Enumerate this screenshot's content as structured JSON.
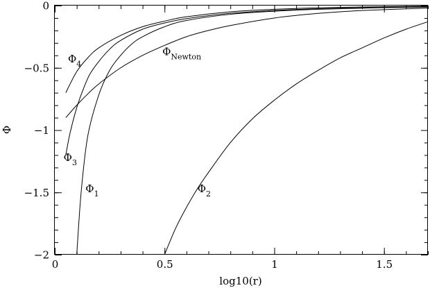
{
  "chart_data": {
    "type": "line",
    "title": "",
    "xlabel": "log10(r)",
    "ylabel": "Φ",
    "xlim": [
      0,
      1.7
    ],
    "ylim": [
      -2,
      0
    ],
    "grid": false,
    "x_major_ticks": [
      {
        "value": 0,
        "label": "0"
      },
      {
        "value": 0.5,
        "label": "0.5"
      },
      {
        "value": 1,
        "label": "1"
      },
      {
        "value": 1.5,
        "label": "1.5"
      }
    ],
    "y_major_ticks": [
      {
        "value": 0,
        "label": "0"
      },
      {
        "value": -0.5,
        "label": "−0.5"
      },
      {
        "value": -1,
        "label": "−1"
      },
      {
        "value": -1.5,
        "label": "−1.5"
      },
      {
        "value": -2,
        "label": "−2"
      }
    ],
    "x_minor_step": 0.1,
    "y_minor_step": 0.1,
    "series": [
      {
        "name": "Φ4",
        "label_base": "Φ",
        "label_sub": "4",
        "label_at": [
          0.06,
          -0.43
        ],
        "x": [
          0.05,
          0.1,
          0.15,
          0.2,
          0.3,
          0.4,
          0.5,
          0.6,
          0.8,
          1.0,
          1.2,
          1.4,
          1.7
        ],
        "y": [
          -0.7,
          -0.53,
          -0.42,
          -0.34,
          -0.24,
          -0.17,
          -0.125,
          -0.09,
          -0.05,
          -0.03,
          -0.018,
          -0.011,
          -0.005
        ]
      },
      {
        "name": "ΦNewton",
        "label_base": "Φ",
        "label_sub": "Newton",
        "label_at": [
          0.49,
          -0.37
        ],
        "x": [
          0.05,
          0.1,
          0.15,
          0.2,
          0.3,
          0.4,
          0.5,
          0.6,
          0.7,
          0.8,
          1.0,
          1.2,
          1.4,
          1.7
        ],
        "y": [
          -0.9,
          -0.8,
          -0.71,
          -0.63,
          -0.5,
          -0.4,
          -0.32,
          -0.25,
          -0.2,
          -0.16,
          -0.1,
          -0.063,
          -0.04,
          -0.02
        ]
      },
      {
        "name": "Φ3",
        "label_base": "Φ",
        "label_sub": "3",
        "label_at": [
          0.04,
          -1.22
        ],
        "x": [
          0.05,
          0.07,
          0.1,
          0.13,
          0.16,
          0.2,
          0.25,
          0.3,
          0.4,
          0.5,
          0.6,
          0.8,
          1.0,
          1.2,
          1.5,
          1.7
        ],
        "y": [
          -1.2,
          -1.02,
          -0.82,
          -0.67,
          -0.55,
          -0.45,
          -0.35,
          -0.28,
          -0.19,
          -0.14,
          -0.105,
          -0.062,
          -0.04,
          -0.026,
          -0.014,
          -0.01
        ]
      },
      {
        "name": "Φ1",
        "label_base": "Φ",
        "label_sub": "1",
        "label_at": [
          0.14,
          -1.47
        ],
        "x": [
          0.1,
          0.12,
          0.15,
          0.2,
          0.25,
          0.3,
          0.35,
          0.4,
          0.5,
          0.6,
          0.8,
          1.0,
          1.2,
          1.5,
          1.7
        ],
        "y": [
          -2.0,
          -1.5,
          -1.05,
          -0.72,
          -0.52,
          -0.4,
          -0.31,
          -0.25,
          -0.17,
          -0.12,
          -0.07,
          -0.045,
          -0.03,
          -0.017,
          -0.012
        ]
      },
      {
        "name": "Φ2",
        "label_base": "Φ",
        "label_sub": "2",
        "label_at": [
          0.65,
          -1.47
        ],
        "x": [
          0.5,
          0.55,
          0.6,
          0.65,
          0.7,
          0.8,
          0.9,
          1.0,
          1.1,
          1.2,
          1.3,
          1.4,
          1.5,
          1.6,
          1.7
        ],
        "y": [
          -2.0,
          -1.79,
          -1.62,
          -1.47,
          -1.34,
          -1.1,
          -0.91,
          -0.76,
          -0.63,
          -0.52,
          -0.42,
          -0.34,
          -0.26,
          -0.19,
          -0.13
        ]
      }
    ]
  }
}
